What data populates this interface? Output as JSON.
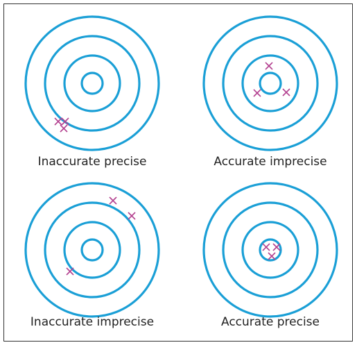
{
  "panels": [
    {
      "label": "Inaccurate precise"
    },
    {
      "label": "Accurate imprecise"
    },
    {
      "label": "Inaccurate imprecise"
    },
    {
      "label": "Accurate precise"
    }
  ]
}
